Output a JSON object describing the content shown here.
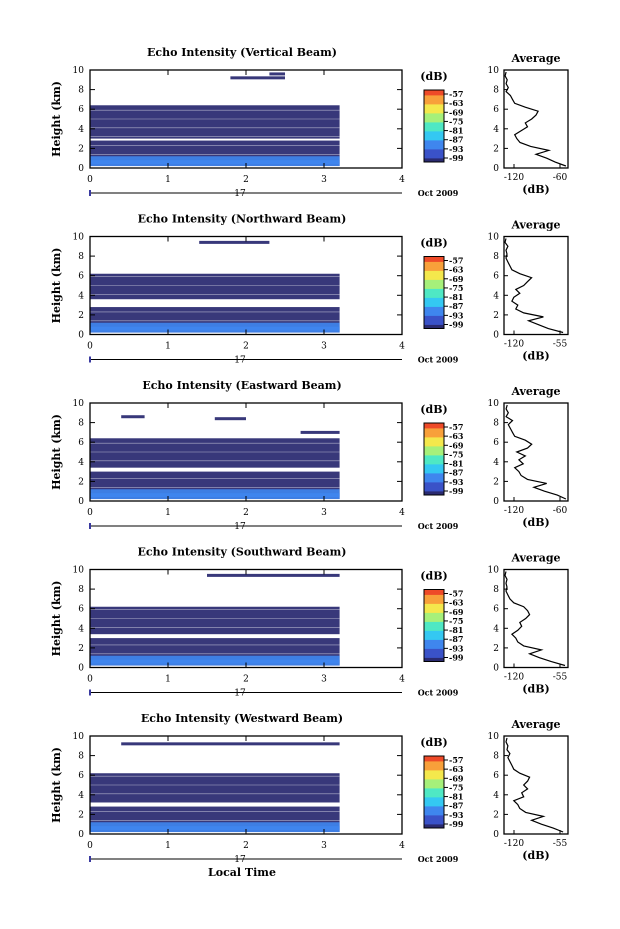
{
  "figure": {
    "date_label": "Oct 2009",
    "day_label": "17",
    "xlabel": "Local Time",
    "ylabel": "Height (km)",
    "avg_title": "Average",
    "avg_xlabel": "(dB)",
    "colorbar_unit": "(dB)",
    "colorbar_ticks": [
      "-57",
      "-63",
      "-69",
      "-75",
      "-81",
      "-87",
      "-93",
      "-99"
    ],
    "colors": {
      "background": "#ffffff",
      "noise_floor": "#38387a",
      "colormap": [
        "#2a2a70",
        "#3a52c8",
        "#3f86ee",
        "#34c8f2",
        "#4fe8c4",
        "#a6f07a",
        "#f4e84c",
        "#f8a03a",
        "#ee4a28"
      ]
    }
  },
  "chart_data": [
    {
      "type": "heatmap",
      "title": "Echo Intensity (Vertical Beam)",
      "xlim": [
        0,
        4
      ],
      "ylim": [
        0,
        10
      ],
      "xticks": [
        "0",
        "1",
        "2",
        "3",
        "4"
      ],
      "yticks": [
        "0",
        "2",
        "4",
        "6",
        "8",
        "10"
      ],
      "data_end_hour": 3.2,
      "layers": [
        {
          "kind": "noise",
          "bottom": 0.2,
          "top": 2.8
        },
        {
          "kind": "noise",
          "bottom": 3.0,
          "top": 6.4
        },
        {
          "kind": "noise_segment",
          "x0": 1.8,
          "x1": 2.5,
          "height": 9.2
        },
        {
          "kind": "noise_segment",
          "x0": 2.3,
          "x1": 2.5,
          "height": 9.6
        },
        {
          "kind": "echo",
          "level": -90,
          "bottom": 0.2,
          "top": 1.2
        },
        {
          "kind": "echo",
          "level": -86,
          "bottom": 0.4,
          "top": 0.8
        }
      ],
      "average_profile": {
        "xlim": [
          -120,
          -60
        ],
        "xticks": [
          "-120",
          "-60"
        ],
        "yticks": [
          "0",
          "2",
          "4",
          "6",
          "8",
          "10"
        ],
        "heights": [
          0.2,
          0.6,
          1.0,
          1.4,
          1.8,
          2.2,
          2.6,
          3.0,
          3.4,
          3.8,
          4.2,
          4.6,
          5.0,
          5.4,
          5.8,
          6.2,
          6.6,
          7.0,
          7.4,
          7.8,
          8.2,
          8.6,
          9.0,
          9.4,
          9.8
        ],
        "values": [
          -62,
          -72,
          -80,
          -90,
          -78,
          -95,
          -105,
          -108,
          -110,
          -104,
          -98,
          -100,
          -94,
          -90,
          -88,
          -100,
          -110,
          -112,
          -114,
          -118,
          -116,
          -118,
          -117,
          -119,
          -118
        ]
      }
    },
    {
      "type": "heatmap",
      "title": "Echo Intensity (Northward Beam)",
      "xlim": [
        0,
        4
      ],
      "ylim": [
        0,
        10
      ],
      "xticks": [
        "0",
        "1",
        "2",
        "3",
        "4"
      ],
      "yticks": [
        "0",
        "2",
        "4",
        "6",
        "8",
        "10"
      ],
      "data_end_hour": 3.2,
      "layers": [
        {
          "kind": "noise",
          "bottom": 0.2,
          "top": 2.8
        },
        {
          "kind": "noise",
          "bottom": 3.6,
          "top": 6.2
        },
        {
          "kind": "noise_segment",
          "x0": 1.4,
          "x1": 2.3,
          "height": 9.4
        },
        {
          "kind": "echo",
          "level": -90,
          "bottom": 0.2,
          "top": 1.2
        },
        {
          "kind": "echo",
          "level": -86,
          "bottom": 0.4,
          "top": 0.8
        }
      ],
      "average_profile": {
        "xlim": [
          -120,
          -55
        ],
        "xticks": [
          "-120",
          "-55"
        ],
        "yticks": [
          "0",
          "2",
          "4",
          "6",
          "8",
          "10"
        ],
        "heights": [
          0.2,
          0.6,
          1.0,
          1.4,
          1.8,
          2.2,
          2.6,
          3.0,
          3.4,
          3.8,
          4.2,
          4.6,
          5.0,
          5.4,
          5.8,
          6.2,
          6.6,
          7.0,
          7.4,
          7.8,
          8.2,
          8.6,
          9.0,
          9.4,
          9.8
        ],
        "values": [
          -60,
          -75,
          -85,
          -95,
          -80,
          -100,
          -108,
          -106,
          -112,
          -110,
          -104,
          -108,
          -100,
          -96,
          -92,
          -104,
          -112,
          -114,
          -116,
          -118,
          -117,
          -118,
          -116,
          -119,
          -118
        ]
      }
    },
    {
      "type": "heatmap",
      "title": "Echo Intensity (Eastward Beam)",
      "xlim": [
        0,
        4
      ],
      "ylim": [
        0,
        10
      ],
      "xticks": [
        "0",
        "1",
        "2",
        "3",
        "4"
      ],
      "yticks": [
        "0",
        "2",
        "4",
        "6",
        "8",
        "10"
      ],
      "data_end_hour": 3.2,
      "layers": [
        {
          "kind": "noise",
          "bottom": 0.2,
          "top": 3.0
        },
        {
          "kind": "noise",
          "bottom": 3.4,
          "top": 6.4
        },
        {
          "kind": "noise_segment",
          "x0": 0.4,
          "x1": 0.7,
          "height": 8.6
        },
        {
          "kind": "noise_segment",
          "x0": 1.6,
          "x1": 2.0,
          "height": 8.4
        },
        {
          "kind": "noise_segment",
          "x0": 2.7,
          "x1": 3.2,
          "height": 7.0
        },
        {
          "kind": "echo",
          "level": -90,
          "bottom": 0.2,
          "top": 1.2
        },
        {
          "kind": "echo",
          "level": -86,
          "bottom": 0.4,
          "top": 0.8
        }
      ],
      "average_profile": {
        "xlim": [
          -120,
          -60
        ],
        "xticks": [
          "-120",
          "-60"
        ],
        "yticks": [
          "0",
          "2",
          "4",
          "6",
          "8",
          "10"
        ],
        "heights": [
          0.2,
          0.6,
          1.0,
          1.4,
          1.8,
          2.2,
          2.6,
          3.0,
          3.4,
          3.8,
          4.2,
          4.6,
          5.0,
          5.4,
          5.8,
          6.2,
          6.6,
          7.0,
          7.4,
          7.8,
          8.2,
          8.6,
          9.0,
          9.4,
          9.8
        ],
        "values": [
          -62,
          -70,
          -82,
          -92,
          -80,
          -98,
          -104,
          -106,
          -110,
          -102,
          -106,
          -100,
          -108,
          -98,
          -94,
          -100,
          -110,
          -112,
          -114,
          -116,
          -112,
          -118,
          -116,
          -118,
          -117
        ]
      }
    },
    {
      "type": "heatmap",
      "title": "Echo Intensity (Southward Beam)",
      "xlim": [
        0,
        4
      ],
      "ylim": [
        0,
        10
      ],
      "xticks": [
        "0",
        "1",
        "2",
        "3",
        "4"
      ],
      "yticks": [
        "0",
        "2",
        "4",
        "6",
        "8",
        "10"
      ],
      "data_end_hour": 3.2,
      "layers": [
        {
          "kind": "noise",
          "bottom": 0.2,
          "top": 3.0
        },
        {
          "kind": "noise",
          "bottom": 3.4,
          "top": 6.2
        },
        {
          "kind": "noise_segment",
          "x0": 1.5,
          "x1": 3.2,
          "height": 9.4
        },
        {
          "kind": "echo",
          "level": -90,
          "bottom": 0.2,
          "top": 1.2
        },
        {
          "kind": "echo",
          "level": -86,
          "bottom": 0.4,
          "top": 0.8
        }
      ],
      "average_profile": {
        "xlim": [
          -120,
          -55
        ],
        "xticks": [
          "-120",
          "-55"
        ],
        "yticks": [
          "0",
          "2",
          "4",
          "6",
          "8",
          "10"
        ],
        "heights": [
          0.2,
          0.6,
          1.0,
          1.4,
          1.8,
          2.2,
          2.6,
          3.0,
          3.4,
          3.8,
          4.2,
          4.6,
          5.0,
          5.4,
          5.8,
          6.2,
          6.6,
          7.0,
          7.4,
          7.8,
          8.2,
          8.6,
          9.0,
          9.4,
          9.8
        ],
        "values": [
          -58,
          -72,
          -84,
          -94,
          -82,
          -100,
          -106,
          -108,
          -112,
          -106,
          -102,
          -104,
          -98,
          -94,
          -96,
          -100,
          -110,
          -114,
          -116,
          -118,
          -117,
          -118,
          -117,
          -119,
          -118
        ]
      }
    },
    {
      "type": "heatmap",
      "title": "Echo Intensity (Westward Beam)",
      "xlim": [
        0,
        4
      ],
      "ylim": [
        0,
        10
      ],
      "xticks": [
        "0",
        "1",
        "2",
        "3",
        "4"
      ],
      "yticks": [
        "0",
        "2",
        "4",
        "6",
        "8",
        "10"
      ],
      "data_end_hour": 3.2,
      "layers": [
        {
          "kind": "noise",
          "bottom": 0.2,
          "top": 2.8
        },
        {
          "kind": "noise",
          "bottom": 3.2,
          "top": 6.2
        },
        {
          "kind": "noise_segment",
          "x0": 0.4,
          "x1": 3.2,
          "height": 9.2
        },
        {
          "kind": "echo",
          "level": -90,
          "bottom": 0.2,
          "top": 1.2
        },
        {
          "kind": "echo",
          "level": -86,
          "bottom": 0.4,
          "top": 0.8
        }
      ],
      "average_profile": {
        "xlim": [
          -120,
          -55
        ],
        "xticks": [
          "-120",
          "-55"
        ],
        "yticks": [
          "0",
          "2",
          "4",
          "6",
          "8",
          "10"
        ],
        "heights": [
          0.2,
          0.6,
          1.0,
          1.4,
          1.8,
          2.2,
          2.6,
          3.0,
          3.4,
          3.8,
          4.2,
          4.6,
          5.0,
          5.4,
          5.8,
          6.2,
          6.6,
          7.0,
          7.4,
          7.8,
          8.2,
          8.6,
          9.0,
          9.4,
          9.8
        ],
        "values": [
          -60,
          -70,
          -82,
          -92,
          -80,
          -98,
          -104,
          -106,
          -110,
          -100,
          -102,
          -96,
          -100,
          -96,
          -94,
          -104,
          -110,
          -112,
          -114,
          -116,
          -114,
          -117,
          -116,
          -118,
          -117
        ]
      }
    }
  ]
}
